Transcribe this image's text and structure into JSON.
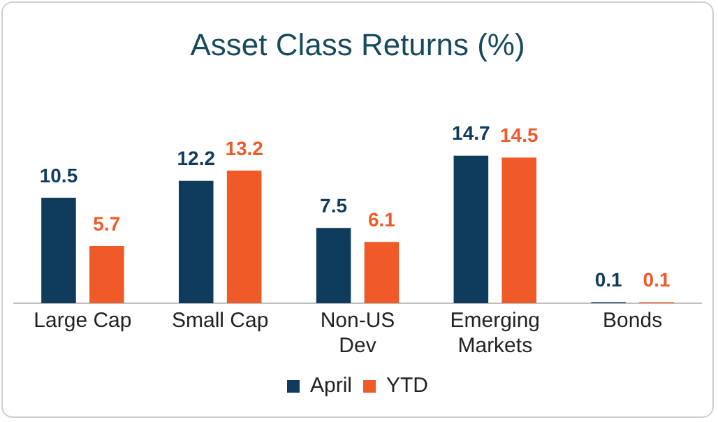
{
  "chart_data": {
    "type": "bar",
    "title": "Asset Class Returns (%)",
    "categories": [
      "Large Cap",
      "Small Cap",
      "Non-US Dev",
      "Emerging Markets",
      "Bonds"
    ],
    "series": [
      {
        "name": "April",
        "color": "#0f3c5c",
        "values": [
          10.5,
          12.2,
          7.5,
          14.7,
          0.1
        ]
      },
      {
        "name": "YTD",
        "color": "#f05a28",
        "values": [
          5.7,
          13.2,
          6.1,
          14.5,
          0.1
        ]
      }
    ],
    "data_labels": true,
    "legend": "bottom"
  }
}
